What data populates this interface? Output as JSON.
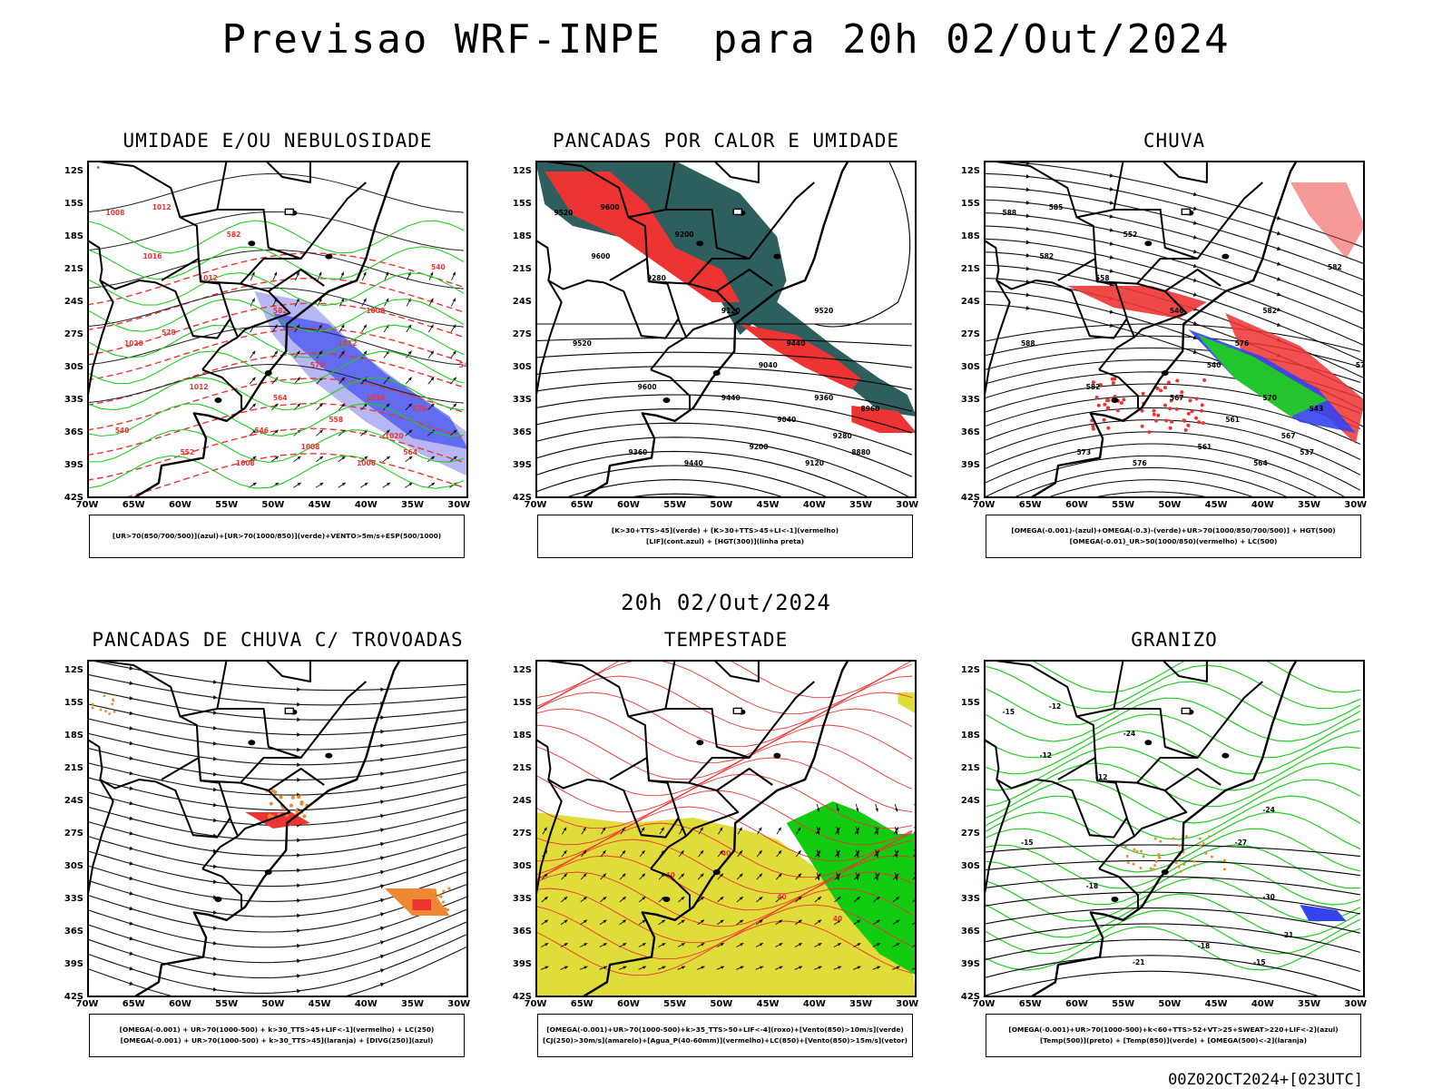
{
  "main_title": "Previsao WRF-INPE  para 20h 02/Out/2024",
  "mid_title": "20h 02/Out/2024",
  "footer_stamp": "00Z02OCT2024+[023UTC]",
  "axes": {
    "lat_labels": [
      "12S",
      "15S",
      "18S",
      "21S",
      "24S",
      "27S",
      "30S",
      "33S",
      "36S",
      "39S",
      "42S"
    ],
    "lon_labels": [
      "70W",
      "65W",
      "60W",
      "55W",
      "50W",
      "45W",
      "40W",
      "35W",
      "30W"
    ]
  },
  "colors": {
    "red": "#ee3333",
    "green": "#22cc22",
    "blue": "#3344ee",
    "lavender": "#9999ee",
    "darkteal": "#2e5f5f",
    "yellow": "#e0dc3a",
    "orange": "#ee8833",
    "brightgreen": "#11cc11"
  },
  "panels": [
    {
      "id": "umidade",
      "title": "UMIDADE E/OU NEBULOSIDADE",
      "legend": [
        "[UR>70(850/700/500)](azul)+[UR>70(1000/850)](verde)+VENTO>5m/s+ESP(500/1000)"
      ],
      "contour_labels": [
        "1012",
        "1008",
        "1016",
        "1020",
        "1012",
        "1008",
        "1008",
        "1012",
        "1016",
        "1020",
        "1008",
        "1006",
        "1012",
        "582",
        "582",
        "570",
        "576",
        "564",
        "558",
        "564",
        "552",
        "546",
        "540",
        "540",
        "528",
        "546"
      ]
    },
    {
      "id": "pancadas-calor",
      "title": "PANCADAS POR CALOR E UMIDADE",
      "legend": [
        "[K>30+TTS>45](verde) + [K>30+TTS>45+LI<-1](vermelho)",
        "[LIF](cont.azul) + [HGT(300)](linha preta)"
      ],
      "contour_labels": [
        "9600",
        "9520",
        "9600",
        "9520",
        "9600",
        "9440",
        "9520",
        "9440",
        "9360",
        "9280",
        "9200",
        "9120",
        "9280",
        "9200",
        "9120",
        "9040",
        "8960",
        "8880",
        "9040",
        "9440",
        "9360"
      ]
    },
    {
      "id": "chuva",
      "title": "CHUVA",
      "legend": [
        "[OMEGA(-0.001)-(azul)+OMEGA(-0.3)-(verde)+UR>70(1000/850/700/500)] + HGT(500)",
        "[OMEGA(-0.01)_UR>50(1000/850)(vermelho) + LC(500)"
      ],
      "contour_labels": [
        "585",
        "588",
        "582",
        "588",
        "582",
        "576",
        "582",
        "576",
        "570",
        "567",
        "561",
        "564",
        "558",
        "552",
        "546",
        "540",
        "543",
        "537",
        "561",
        "567",
        "573",
        "579",
        "582"
      ]
    },
    {
      "id": "pancadas-trovoadas",
      "title": "PANCADAS DE CHUVA C/ TROVOADAS",
      "legend": [
        "[OMEGA(-0.001) + UR>70(1000-500) + k>30_TTS>45+LIF<-1](vermelho) + LC(250)",
        "[OMEGA(-0.001) + UR>70(1000-500) + k>30_TTS>45](laranja) + [DIVG(250)](azul)"
      ],
      "contour_labels": []
    },
    {
      "id": "tempestade",
      "title": "TEMPESTADE",
      "legend": [
        "[OMEGA(-0.001)+UR>70(1000-500)+k>35_TTS>50+LIF<-4](roxo)+[Vento(850)>10m/s](verde)",
        "[CJ(250)>30m/s](amarelo)+[Agua_P(40-60mm)](vermelho)+LC(850)+[Vento(850)>15m/s](vetor)"
      ],
      "contour_labels": [
        "40",
        "40",
        "40",
        "40"
      ]
    },
    {
      "id": "granizo",
      "title": "GRANIZO",
      "legend": [
        "[OMEGA(-0.001)+UR>70(1000-500)+k<60+TTS>52+VT>25+SWEAT>220+LIF<-2](azul)",
        "[Temp(500)](preto) + [Temp(850)](verde) + [OMEGA(500)<-2](laranja)"
      ],
      "contour_labels": [
        "-12",
        "-15",
        "-12",
        "-15",
        "-18",
        "-21",
        "-24",
        "-27",
        "-30",
        "-21",
        "-18",
        "-15",
        "-12",
        "-24"
      ]
    }
  ]
}
